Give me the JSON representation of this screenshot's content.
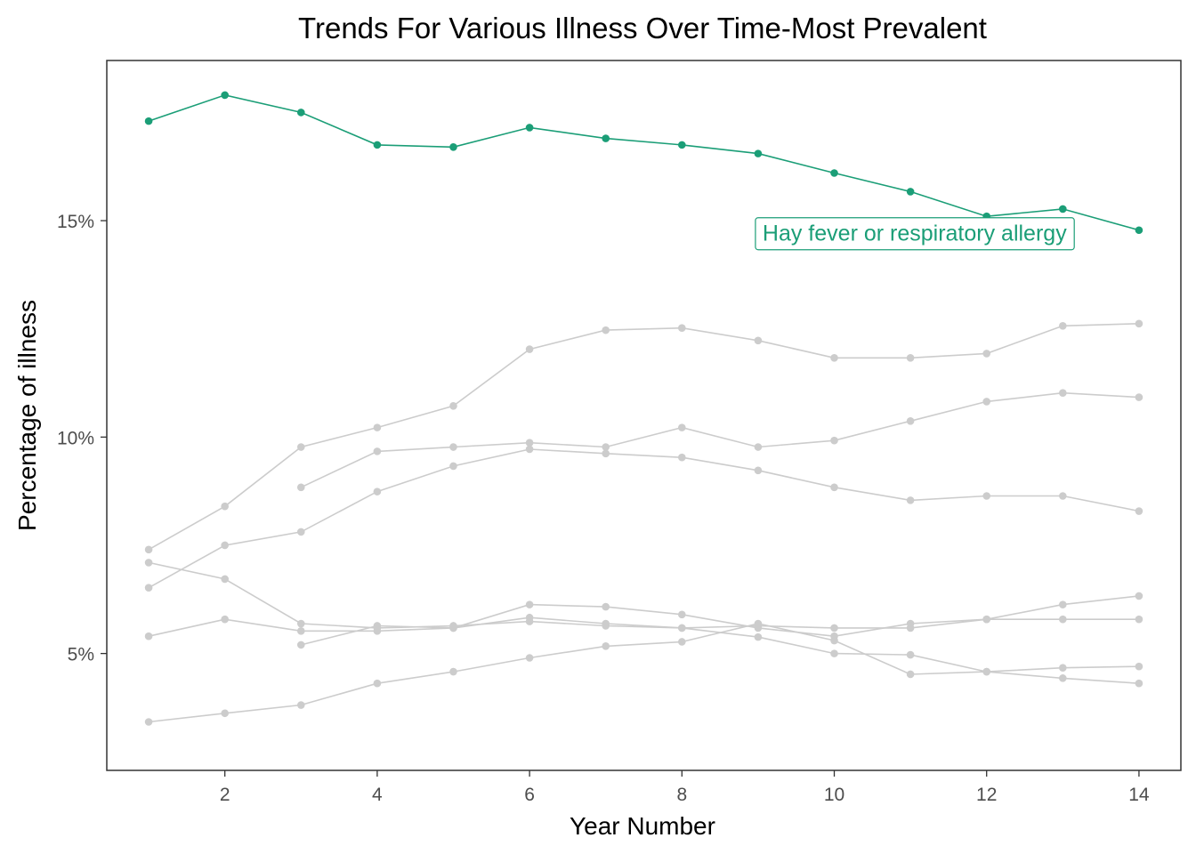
{
  "chart_data": {
    "type": "line",
    "title": "Trends For Various Illness Over Time-Most Prevalent",
    "xlabel": "Year Number",
    "ylabel": "Percentage of illness",
    "xlim": [
      0.45,
      14.55
    ],
    "ylim": [
      2.3,
      18.7
    ],
    "x_ticks": [
      2,
      4,
      6,
      8,
      10,
      12,
      14
    ],
    "y_ticks": [
      5,
      10,
      15
    ],
    "y_tick_labels": [
      "5%",
      "10%",
      "15%"
    ],
    "grid": false,
    "legend": "none",
    "highlight_color": "#1b9e77",
    "muted_color": "#cccccc",
    "series": [
      {
        "name": "Hay fever or respiratory allergy",
        "highlight": true,
        "x": [
          1,
          2,
          3,
          4,
          5,
          6,
          7,
          8,
          9,
          10,
          11,
          12,
          13,
          14
        ],
        "values": [
          17.3,
          17.9,
          17.5,
          16.75,
          16.7,
          17.15,
          16.9,
          16.75,
          16.55,
          16.1,
          15.67,
          15.1,
          15.27,
          14.78
        ]
      },
      {
        "x": [
          1,
          2,
          3,
          4,
          5,
          6,
          7,
          8,
          9,
          10,
          11,
          12,
          13,
          14
        ],
        "values": [
          7.4,
          8.4,
          9.77,
          10.22,
          10.72,
          12.03,
          12.47,
          12.52,
          12.23,
          11.83,
          11.83,
          11.93,
          12.57,
          12.62
        ]
      },
      {
        "x": [
          3,
          4,
          5,
          6,
          7,
          8,
          9,
          10,
          11,
          12,
          13,
          14
        ],
        "values": [
          8.84,
          9.67,
          9.77,
          9.87,
          9.77,
          10.22,
          9.77,
          9.92,
          10.37,
          10.82,
          11.02,
          10.92
        ]
      },
      {
        "x": [
          1,
          2,
          3,
          4,
          5,
          6,
          7,
          8,
          9,
          10,
          11,
          12,
          13,
          14
        ],
        "values": [
          6.52,
          7.5,
          7.81,
          8.74,
          9.33,
          9.72,
          9.62,
          9.53,
          9.23,
          8.84,
          8.54,
          8.64,
          8.64,
          8.29
        ]
      },
      {
        "x": [
          1,
          2,
          3,
          4,
          5,
          6,
          7,
          8,
          9,
          10,
          11,
          12,
          13,
          14
        ],
        "values": [
          7.1,
          6.72,
          5.69,
          5.59,
          5.64,
          5.74,
          5.64,
          5.59,
          5.64,
          5.59,
          5.59,
          5.79,
          5.79,
          5.79
        ]
      },
      {
        "x": [
          1,
          2,
          3,
          4,
          5,
          6,
          7,
          8,
          9,
          10,
          11,
          12,
          13,
          14
        ],
        "values": [
          5.4,
          5.79,
          5.52,
          5.52,
          5.59,
          5.83,
          5.69,
          5.59,
          5.38,
          5.0,
          4.97,
          4.58,
          4.43,
          4.31
        ]
      },
      {
        "x": [
          3,
          4,
          5,
          6,
          7,
          8,
          9,
          10,
          11,
          12,
          13,
          14
        ],
        "values": [
          5.2,
          5.64,
          5.59,
          6.13,
          6.08,
          5.9,
          5.59,
          5.4,
          5.69,
          5.79,
          6.13,
          6.33
        ]
      },
      {
        "x": [
          1,
          2,
          3,
          4,
          5,
          6,
          7,
          8,
          9,
          10,
          11,
          12,
          13,
          14
        ],
        "values": [
          3.42,
          3.62,
          3.81,
          4.31,
          4.58,
          4.9,
          5.17,
          5.27,
          5.69,
          5.3,
          4.52,
          4.58,
          4.67,
          4.7
        ]
      }
    ],
    "annotation": {
      "text": "Hay fever or respiratory allergy",
      "anchor_x": 14,
      "anchor_y": 14.78
    }
  }
}
